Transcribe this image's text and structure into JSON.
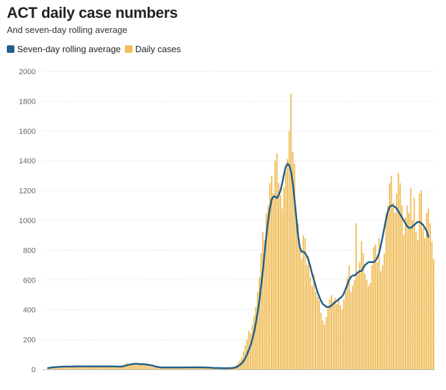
{
  "chart_data": {
    "type": "bar",
    "title": "ACT daily case numbers",
    "subtitle": "And seven-day rolling average",
    "legend": {
      "placement": "top-left",
      "items": [
        {
          "label": "Seven-day rolling average",
          "color": "#1f5f8b"
        },
        {
          "label": "Daily cases",
          "color": "#f0bd5a"
        }
      ]
    },
    "colors": {
      "bars": "#f0bd5a",
      "line": "#1f5f8b",
      "grid": "#e3e3e3",
      "axis": "#bdbdbd"
    },
    "ylim": [
      0,
      2000
    ],
    "yticks": [
      0,
      200,
      400,
      600,
      800,
      1000,
      1200,
      1400,
      1600,
      1800,
      2000
    ],
    "grid": true,
    "series": [
      {
        "name": "Daily cases",
        "type": "bar",
        "values": [
          10,
          13,
          16,
          15,
          17,
          20,
          18,
          22,
          16,
          19,
          22,
          18,
          21,
          17,
          20,
          23,
          19,
          22,
          18,
          20,
          24,
          19,
          21,
          17,
          20,
          22,
          18,
          21,
          17,
          20,
          23,
          19,
          22,
          18,
          20,
          21,
          17,
          20,
          18,
          16,
          19,
          22,
          24,
          26,
          35,
          45,
          32,
          38,
          42,
          35,
          30,
          33,
          38,
          34,
          30,
          35,
          28,
          26,
          22,
          18,
          15,
          13,
          12,
          10,
          11,
          12,
          14,
          15,
          13,
          12,
          11,
          10,
          12,
          13,
          15,
          14,
          12,
          11,
          13,
          16,
          14,
          12,
          11,
          13,
          15,
          17,
          14,
          12,
          10,
          11,
          13,
          12,
          10,
          9,
          8,
          7,
          8,
          9,
          10,
          8,
          7,
          6,
          7,
          8,
          10,
          12,
          18,
          30,
          45,
          60,
          80,
          120,
          160,
          200,
          260,
          240,
          300,
          360,
          420,
          520,
          620,
          780,
          920,
          870,
          1050,
          1100,
          1250,
          1300,
          1180,
          1400,
          1450,
          1250,
          1170,
          1080,
          1220,
          1330,
          1410,
          1600,
          1850,
          1460,
          1380,
          1050,
          980,
          820,
          740,
          900,
          880,
          700,
          760,
          620,
          560,
          640,
          520,
          490,
          460,
          380,
          330,
          300,
          350,
          420,
          470,
          500,
          460,
          480,
          440,
          480,
          430,
          400,
          470,
          520,
          620,
          700,
          520,
          560,
          600,
          980,
          640,
          720,
          860,
          780,
          640,
          600,
          560,
          580,
          700,
          820,
          840,
          720,
          880,
          660,
          700,
          780,
          1050,
          1100,
          1250,
          1300,
          1120,
          1050,
          1180,
          1320,
          1250,
          1100,
          900,
          1020,
          1100,
          1050,
          1220,
          1000,
          1150,
          920,
          870,
          1180,
          1200,
          950,
          880,
          1050,
          1080,
          980,
          860,
          740
        ],
        "color": "#f0bd5a"
      },
      {
        "name": "Seven-day rolling average",
        "type": "line",
        "values": [
          10,
          11,
          13,
          14,
          15,
          16,
          17,
          18,
          18,
          19,
          19,
          19,
          19,
          19,
          19,
          20,
          20,
          20,
          20,
          20,
          20,
          20,
          20,
          20,
          20,
          20,
          20,
          20,
          20,
          20,
          20,
          20,
          20,
          20,
          20,
          20,
          20,
          20,
          20,
          19,
          19,
          19,
          20,
          22,
          25,
          28,
          32,
          34,
          36,
          37,
          38,
          37,
          36,
          36,
          35,
          34,
          33,
          31,
          29,
          26,
          23,
          20,
          17,
          15,
          14,
          13,
          13,
          13,
          13,
          13,
          13,
          13,
          13,
          13,
          13,
          13,
          13,
          13,
          13,
          14,
          14,
          14,
          14,
          14,
          14,
          14,
          14,
          14,
          13,
          13,
          13,
          12,
          12,
          11,
          10,
          9,
          9,
          9,
          9,
          8,
          8,
          8,
          8,
          8,
          9,
          10,
          12,
          16,
          22,
          30,
          40,
          55,
          75,
          100,
          130,
          160,
          200,
          250,
          310,
          380,
          460,
          560,
          660,
          780,
          900,
          1000,
          1080,
          1140,
          1160,
          1160,
          1150,
          1170,
          1200,
          1250,
          1310,
          1360,
          1380,
          1370,
          1330,
          1250,
          1140,
          1020,
          900,
          820,
          790,
          790,
          780,
          760,
          730,
          690,
          640,
          600,
          560,
          520,
          490,
          460,
          440,
          430,
          420,
          420,
          420,
          430,
          440,
          450,
          460,
          470,
          480,
          490,
          510,
          540,
          570,
          600,
          620,
          630,
          630,
          640,
          650,
          660,
          660,
          680,
          700,
          710,
          720,
          720,
          720,
          720,
          730,
          750,
          780,
          830,
          890,
          950,
          1010,
          1060,
          1090,
          1100,
          1100,
          1090,
          1080,
          1060,
          1040,
          1020,
          1000,
          980,
          960,
          950,
          950,
          960,
          970,
          980,
          990,
          990,
          980,
          970,
          950,
          930,
          890
        ]
      }
    ]
  }
}
